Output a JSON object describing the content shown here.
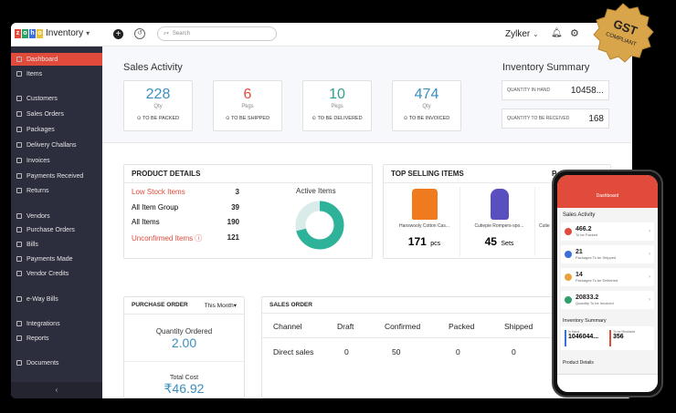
{
  "app": {
    "logo_text": "Inventory",
    "search_placeholder": "Search",
    "org_name": "Zylker"
  },
  "sidebar": {
    "items": [
      {
        "label": "Dashboard",
        "active": true
      },
      {
        "label": "Items"
      },
      {
        "label": "Customers"
      },
      {
        "label": "Sales Orders"
      },
      {
        "label": "Packages"
      },
      {
        "label": "Delivery Challans"
      },
      {
        "label": "Invoices"
      },
      {
        "label": "Payments Received"
      },
      {
        "label": "Returns"
      },
      {
        "label": "Vendors"
      },
      {
        "label": "Purchase Orders"
      },
      {
        "label": "Bills"
      },
      {
        "label": "Payments Made"
      },
      {
        "label": "Vendor Credits"
      },
      {
        "label": "e-Way Bills"
      },
      {
        "label": "Integrations"
      },
      {
        "label": "Reports"
      },
      {
        "label": "Documents"
      }
    ]
  },
  "sales_activity": {
    "title": "Sales Activity",
    "cards": [
      {
        "value": "228",
        "unit": "Qty",
        "label": "TO BE PACKED",
        "color": "#3a8fbf"
      },
      {
        "value": "6",
        "unit": "Pkgs",
        "label": "TO BE SHIPPED",
        "color": "#e04b3c"
      },
      {
        "value": "10",
        "unit": "Pkgs",
        "label": "TO BE DELIVERED",
        "color": "#2ea08a"
      },
      {
        "value": "474",
        "unit": "Qty",
        "label": "TO BE INVOICED",
        "color": "#3a8fbf"
      }
    ]
  },
  "inventory_summary": {
    "title": "Inventory Summary",
    "rows": [
      {
        "label": "QUANTITY IN HAND",
        "value": "10458..."
      },
      {
        "label": "QUANTITY TO BE RECEIVED",
        "value": "168"
      }
    ]
  },
  "product_details": {
    "title": "PRODUCT DETAILS",
    "rows": [
      {
        "label": "Low Stock Items",
        "value": "3",
        "highlight": true
      },
      {
        "label": "All Item Group",
        "value": "39"
      },
      {
        "label": "All Items",
        "value": "190"
      },
      {
        "label": "Unconfirmed Items",
        "value": "121",
        "highlight": true
      }
    ],
    "active_items_label": "Active Items",
    "active_pct": 71,
    "active_pct_label": "71%"
  },
  "top_selling": {
    "title": "TOP SELLING ITEMS",
    "partial_header": "P",
    "items": [
      {
        "name": "Hanswooly Cotton Cas...",
        "qty": "171",
        "unit": "pcs"
      },
      {
        "name": "Cutiepie Rompers-spo...",
        "qty": "45",
        "unit": "Sets"
      },
      {
        "name": "Cutie"
      }
    ]
  },
  "purchase_order": {
    "title": "PURCHASE ORDER",
    "period": "This Month",
    "qty_label": "Quantity Ordered",
    "qty_value": "2.00",
    "cost_label": "Total Cost",
    "cost_value": "₹46.92"
  },
  "sales_order": {
    "title": "SALES ORDER",
    "columns": [
      "Channel",
      "Draft",
      "Confirmed",
      "Packed",
      "Shipped"
    ],
    "rows": [
      [
        "Direct sales",
        "0",
        "50",
        "0",
        "0"
      ]
    ]
  },
  "phone": {
    "header": "Dashboard",
    "section": "Sales Activity",
    "cards": [
      {
        "num": "466.2",
        "label": "To be Packed",
        "color": "#e04b3c"
      },
      {
        "num": "21",
        "label": "Packages To be Shipped",
        "color": "#3a6fd8"
      },
      {
        "num": "14",
        "label": "Packages To be Delivered",
        "color": "#e8a23a"
      },
      {
        "num": "20833.2",
        "label": "Quantity To be Invoiced",
        "color": "#2ea06a"
      }
    ],
    "inv_title": "Inventory Summary",
    "inv": [
      {
        "label": "In Hand",
        "value": "1046044..."
      },
      {
        "label": "To be Received",
        "value": "356"
      }
    ],
    "product_details": "Product Details"
  },
  "badge": {
    "line1": "GST",
    "line2": "COMPLIANT"
  }
}
